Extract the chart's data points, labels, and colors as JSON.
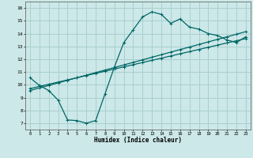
{
  "bg_color": "#cce8e8",
  "grid_color": "#aacfcf",
  "line_color": "#006666",
  "xlabel": "Humidex (Indice chaleur)",
  "xlim": [
    -0.5,
    23.5
  ],
  "ylim": [
    6.5,
    16.5
  ],
  "xticks": [
    0,
    1,
    2,
    3,
    4,
    5,
    6,
    7,
    8,
    9,
    10,
    11,
    12,
    13,
    14,
    15,
    16,
    17,
    18,
    19,
    20,
    21,
    22,
    23
  ],
  "yticks": [
    7,
    8,
    9,
    10,
    11,
    12,
    13,
    14,
    15,
    16
  ],
  "curve1_x": [
    0,
    1,
    2,
    3,
    4,
    5,
    6,
    7,
    8,
    9,
    10,
    11,
    12,
    13,
    14,
    15,
    16,
    17,
    18,
    19,
    20,
    21,
    22,
    23
  ],
  "curve1_y": [
    10.55,
    9.95,
    9.55,
    8.8,
    7.25,
    7.2,
    7.0,
    7.2,
    9.3,
    11.4,
    13.3,
    14.3,
    15.3,
    15.7,
    15.5,
    14.8,
    15.15,
    14.5,
    14.35,
    14.0,
    13.85,
    13.5,
    13.3,
    13.75
  ],
  "line2_x": [
    0,
    1,
    2,
    3,
    4,
    5,
    6,
    7,
    8,
    9,
    10,
    11,
    12,
    13,
    14,
    15,
    16,
    17,
    18,
    19,
    20,
    21,
    22,
    23
  ],
  "line2_y": [
    9.55,
    9.75,
    9.95,
    10.15,
    10.35,
    10.55,
    10.75,
    10.95,
    11.15,
    11.35,
    11.55,
    11.75,
    11.95,
    12.15,
    12.35,
    12.55,
    12.75,
    12.95,
    13.15,
    13.35,
    13.55,
    13.75,
    13.95,
    14.15
  ],
  "line3_x": [
    0,
    1,
    2,
    3,
    4,
    5,
    6,
    7,
    8,
    9,
    10,
    11,
    12,
    13,
    14,
    15,
    16,
    17,
    18,
    19,
    20,
    21,
    22,
    23
  ],
  "line3_y": [
    9.7,
    9.87,
    10.04,
    10.21,
    10.38,
    10.55,
    10.72,
    10.89,
    11.06,
    11.23,
    11.4,
    11.57,
    11.74,
    11.91,
    12.08,
    12.25,
    12.42,
    12.59,
    12.76,
    12.93,
    13.1,
    13.27,
    13.44,
    13.61
  ]
}
